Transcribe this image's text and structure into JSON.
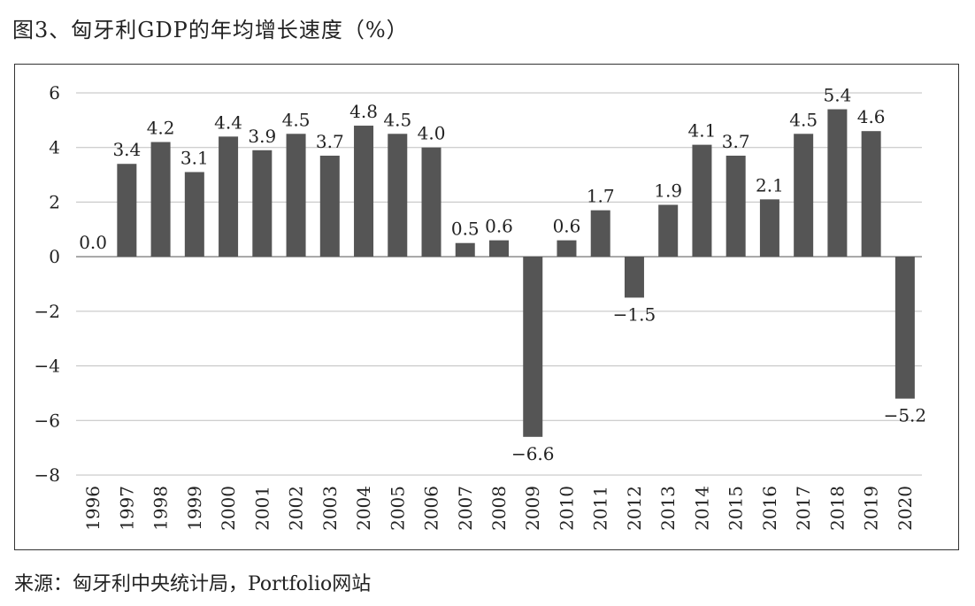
{
  "title": "图3、匈牙利GDP的年均增长速度（%）",
  "source": "来源：匈牙利中央统计局，Portfolio网站",
  "colors": {
    "bar": "#555555",
    "grid": "#bfbfbf",
    "axis": "#555555"
  },
  "chart_data": {
    "type": "bar",
    "title": "图3、匈牙利GDP的年均增长速度（%）",
    "xlabel": "",
    "ylabel": "",
    "ylim": [
      -8,
      6
    ],
    "yticks": [
      6,
      4,
      2,
      0,
      -2,
      -4,
      -6,
      -8
    ],
    "ytick_labels": [
      "6",
      "4",
      "2",
      "0",
      "−2",
      "−4",
      "−6",
      "−8"
    ],
    "grid": true,
    "legend": "none",
    "categories": [
      "1996",
      "1997",
      "1998",
      "1999",
      "2000",
      "2001",
      "2002",
      "2003",
      "2004",
      "2005",
      "2006",
      "2007",
      "2008",
      "2009",
      "2010",
      "2011",
      "2012",
      "2013",
      "2014",
      "2015",
      "2016",
      "2017",
      "2018",
      "2019",
      "2020"
    ],
    "values": [
      0.0,
      3.4,
      4.2,
      3.1,
      4.4,
      3.9,
      4.5,
      3.7,
      4.8,
      4.5,
      4.0,
      0.5,
      0.6,
      -6.6,
      0.6,
      1.7,
      -1.5,
      1.9,
      4.1,
      3.7,
      2.1,
      4.5,
      5.4,
      4.6,
      -5.2
    ],
    "value_labels": [
      "0.0",
      "3.4",
      "4.2",
      "3.1",
      "4.4",
      "3.9",
      "4.5",
      "3.7",
      "4.8",
      "4.5",
      "4.0",
      "0.5",
      "0.6",
      "−6.6",
      "0.6",
      "1.7",
      "−1.5",
      "1.9",
      "4.1",
      "3.7",
      "2.1",
      "4.5",
      "5.4",
      "4.6",
      "−5.2"
    ]
  }
}
